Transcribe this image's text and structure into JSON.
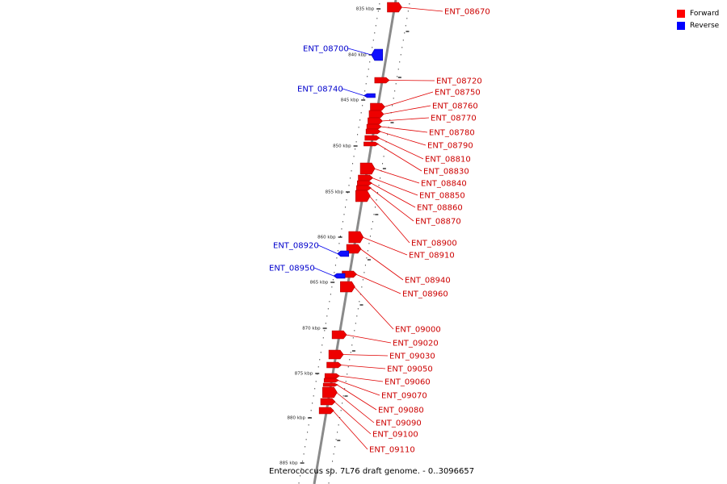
{
  "legend": {
    "forward_label": "Forward",
    "reverse_label": "Reverse",
    "forward_color": "#ff0000",
    "reverse_color": "#0000ff"
  },
  "caption": "Enterococcus sp. 7L76 draft genome. - 0..3096657",
  "ruler": {
    "unit": "kbp",
    "ticks": [
      "835 kbp",
      "840 kbp",
      "845 kbp",
      "850 kbp",
      "855 kbp",
      "860 kbp",
      "865 kbp",
      "870 kbp",
      "875 kbp",
      "880 kbp",
      "885 kbp"
    ]
  },
  "features": {
    "reverse": [
      "ENT_08700",
      "ENT_08740",
      "ENT_08920",
      "ENT_08950"
    ],
    "forward": [
      "ENT_08670",
      "ENT_08720",
      "ENT_08750",
      "ENT_08760",
      "ENT_08770",
      "ENT_08780",
      "ENT_08790",
      "ENT_08810",
      "ENT_08830",
      "ENT_08840",
      "ENT_08850",
      "ENT_08860",
      "ENT_08870",
      "ENT_08900",
      "ENT_08910",
      "ENT_08940",
      "ENT_08960",
      "ENT_09000",
      "ENT_09020",
      "ENT_09030",
      "ENT_09050",
      "ENT_09060",
      "ENT_09070",
      "ENT_09080",
      "ENT_09090",
      "ENT_09100",
      "ENT_09110"
    ]
  }
}
